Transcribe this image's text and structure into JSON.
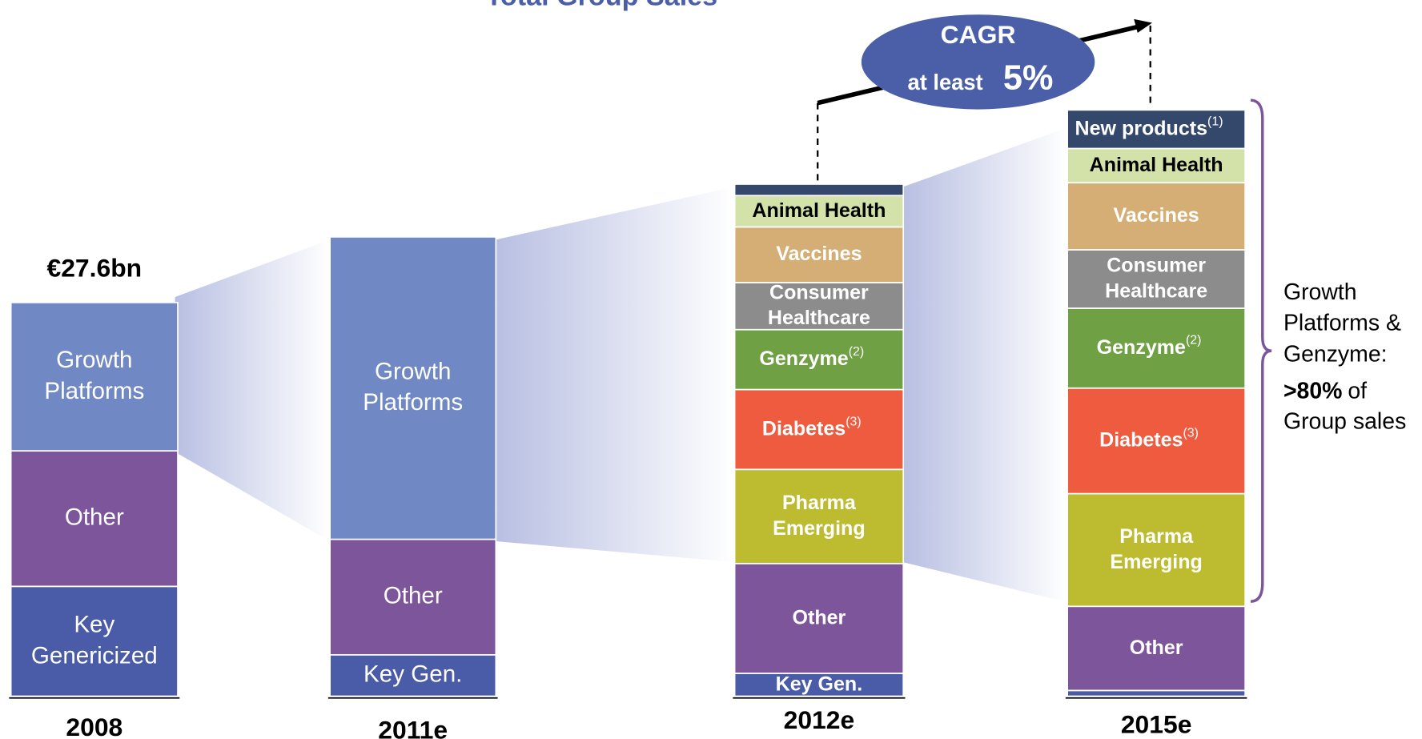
{
  "chart_data": {
    "type": "stacked_bar",
    "title": "Total Group Sales",
    "categories": [
      "2008",
      "2011e",
      "2012e",
      "2015e"
    ],
    "bars": [
      {
        "total_label": "€27.6bn",
        "segments": [
          {
            "label": [
              "Key",
              "Genericized"
            ],
            "value": 7.7,
            "color": "#4a5ba8"
          },
          {
            "label": [
              "Other"
            ],
            "value": 9.5,
            "color": "#7d559b"
          },
          {
            "label": [
              "Growth",
              "Platforms"
            ],
            "value": 10.4,
            "color": "#7088c4"
          }
        ]
      },
      {
        "segments": [
          {
            "label": [
              "Key Gen."
            ],
            "value": 2.9,
            "color": "#4a5ba8"
          },
          {
            "label": [
              "Other"
            ],
            "value": 8.1,
            "color": "#7d559b"
          },
          {
            "label": [
              "Growth",
              "Platforms"
            ],
            "value": 21.2,
            "color": "#7088c4"
          }
        ]
      },
      {
        "segments": [
          {
            "label": [
              "Key Gen."
            ],
            "value": 1.6,
            "color": "#4a5ba8"
          },
          {
            "label": [
              "Other"
            ],
            "value": 7.7,
            "color": "#7d559b"
          },
          {
            "label": [
              "Pharma",
              "Emerging"
            ],
            "value": 6.6,
            "color": "#bdbc31"
          },
          {
            "label": [
              "Diabetes"
            ],
            "note": "(3)",
            "value": 5.6,
            "color": "#ef5b3f"
          },
          {
            "label": [
              "Genzyme"
            ],
            "note": "(2)",
            "value": 4.2,
            "color": "#6fa043"
          },
          {
            "label": [
              "Consumer",
              "Healthcare"
            ],
            "value": 3.3,
            "color": "#8c8c8c"
          },
          {
            "label": [
              "Vaccines"
            ],
            "value": 3.9,
            "color": "#d4ae74"
          },
          {
            "label": [
              "Animal Health"
            ],
            "value": 2.2,
            "color": "#d3e2a8",
            "text_color": "#000000"
          },
          {
            "value": 0.8,
            "color": "#34486b"
          }
        ]
      },
      {
        "segments": [
          {
            "value": 0.4,
            "color": "#4a5ba8"
          },
          {
            "label": [
              "Other"
            ],
            "value": 5.9,
            "color": "#7d559b"
          },
          {
            "label": [
              "Pharma",
              "Emerging"
            ],
            "value": 7.9,
            "color": "#bdbc31"
          },
          {
            "label": [
              "Diabetes"
            ],
            "note": "(3)",
            "value": 7.4,
            "color": "#ef5b3f"
          },
          {
            "label": [
              "Genzyme"
            ],
            "note": "(2)",
            "value": 5.6,
            "color": "#6fa043"
          },
          {
            "label": [
              "Consumer",
              "Healthcare"
            ],
            "value": 4.1,
            "color": "#8c8c8c"
          },
          {
            "label": [
              "Vaccines"
            ],
            "value": 4.7,
            "color": "#d4ae74"
          },
          {
            "label": [
              "Animal Health"
            ],
            "value": 2.4,
            "color": "#d3e2a8",
            "text_color": "#000000"
          },
          {
            "label": [
              "New products"
            ],
            "note": "(1)",
            "value": 2.7,
            "color": "#34486b"
          }
        ]
      }
    ],
    "cagr": {
      "title": "CAGR",
      "prefix": "at least",
      "value_label": "5%"
    },
    "bracket_note": {
      "lines": [
        "Growth",
        "Platforms &",
        "Genzyme:"
      ],
      "bold": ">80%",
      "rest": "of",
      "last": "Group sales"
    }
  }
}
